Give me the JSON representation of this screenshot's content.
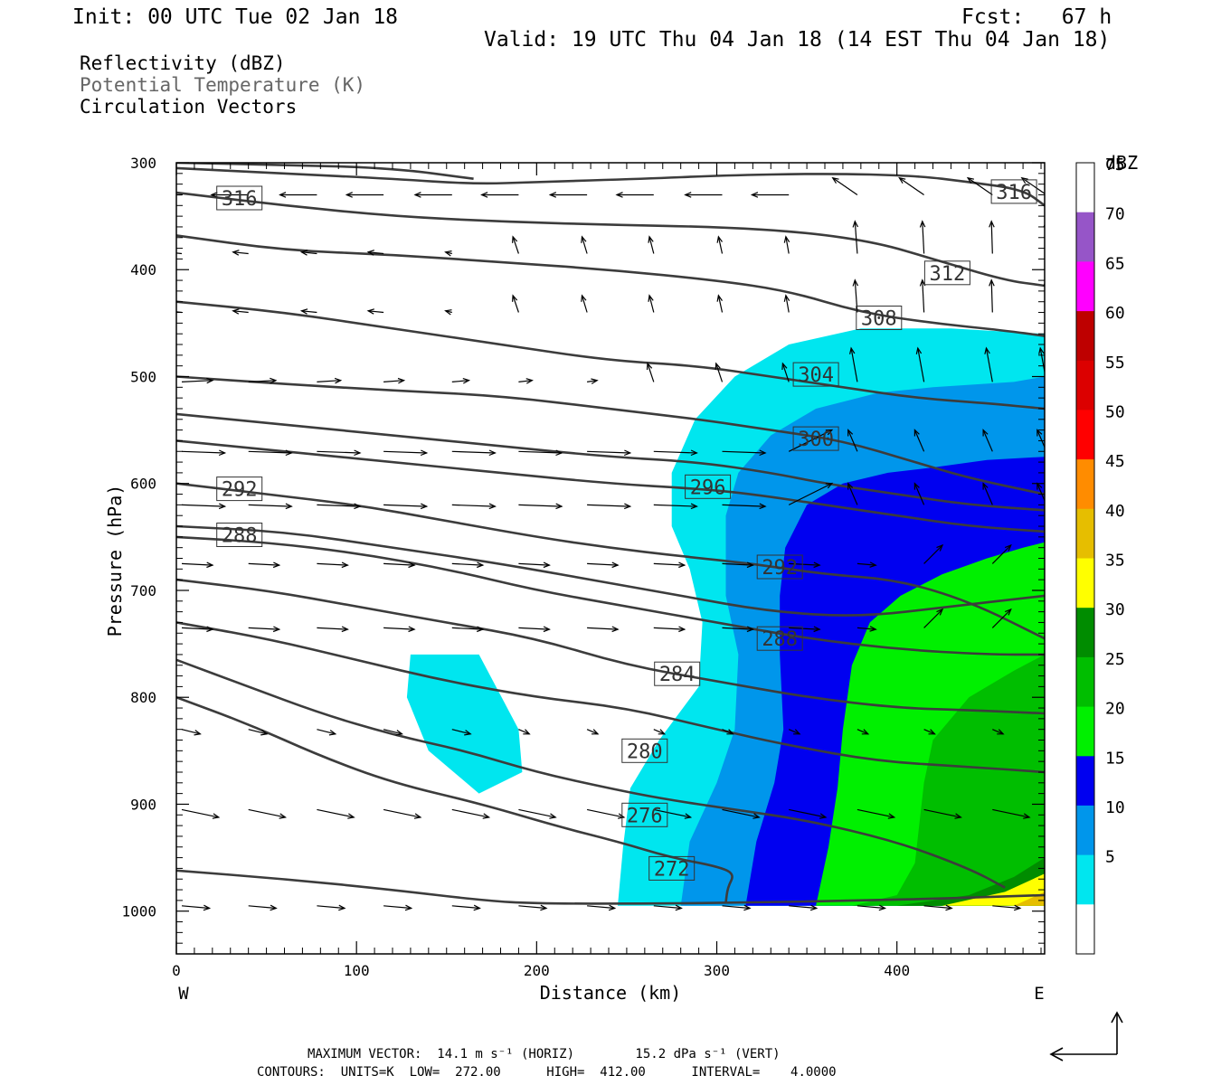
{
  "header": {
    "init": "Init: 00 UTC Tue 02 Jan 18",
    "fcst": "Fcst:   67 h",
    "valid": "Valid: 19 UTC Thu 04 Jan 18 (14 EST Thu 04 Jan 18)"
  },
  "legend": {
    "line1": "Reflectivity (dBZ)",
    "line2": "Potential Temperature (K)",
    "line3": "Circulation Vectors"
  },
  "footer": {
    "line1": "MAXIMUM VECTOR:  14.1 m s⁻¹ (HORIZ)        15.2 dPa s⁻¹ (VERT)",
    "line2": "CONTOURS:  UNITS=K  LOW=  272.00      HIGH=  412.00      INTERVAL=    4.0000"
  },
  "colors": {
    "contour": "#3c3c3c",
    "scale": [
      "#ffffff",
      "#00e6ef",
      "#0096eb",
      "#0000f0",
      "#00f000",
      "#00be00",
      "#008c00",
      "#ffff00",
      "#e6be00",
      "#ff8c00",
      "#ff0000",
      "#dc0000",
      "#be0000",
      "#ff00ff",
      "#9655c8"
    ]
  },
  "chart_data": {
    "type": "cross-section",
    "xlabel": "Distance (km)",
    "ylabel": "Pressure (hPa)",
    "xlim": [
      0,
      482
    ],
    "ylim": [
      1040,
      300
    ],
    "x_ticks": [
      0,
      100,
      200,
      300,
      400
    ],
    "y_ticks": [
      300,
      400,
      500,
      600,
      700,
      800,
      900,
      1000
    ],
    "x_ends": [
      "W",
      "E"
    ],
    "colorbar": {
      "title": "dBZ",
      "levels": [
        5,
        10,
        15,
        20,
        25,
        30,
        35,
        40,
        45,
        50,
        55,
        60,
        65,
        70,
        75
      ]
    },
    "reflectivity": [
      {
        "dbz": 5,
        "polygon": [
          [
            245,
            995
          ],
          [
            248,
            940
          ],
          [
            252,
            885
          ],
          [
            268,
            840
          ],
          [
            290,
            790
          ],
          [
            292,
            730
          ],
          [
            285,
            680
          ],
          [
            275,
            640
          ],
          [
            275,
            590
          ],
          [
            288,
            540
          ],
          [
            310,
            500
          ],
          [
            340,
            470
          ],
          [
            380,
            455
          ],
          [
            430,
            455
          ],
          [
            482,
            460
          ],
          [
            482,
            995
          ]
        ]
      },
      {
        "dbz": 5,
        "polygon": [
          [
            130,
            760
          ],
          [
            168,
            760
          ],
          [
            190,
            830
          ],
          [
            192,
            870
          ],
          [
            168,
            890
          ],
          [
            140,
            850
          ],
          [
            128,
            800
          ]
        ]
      },
      {
        "dbz": 10,
        "polygon": [
          [
            280,
            995
          ],
          [
            285,
            935
          ],
          [
            300,
            880
          ],
          [
            310,
            830
          ],
          [
            312,
            760
          ],
          [
            305,
            705
          ],
          [
            305,
            630
          ],
          [
            312,
            590
          ],
          [
            330,
            555
          ],
          [
            355,
            530
          ],
          [
            390,
            515
          ],
          [
            420,
            510
          ],
          [
            465,
            505
          ],
          [
            482,
            500
          ],
          [
            482,
            995
          ]
        ]
      },
      {
        "dbz": 15,
        "polygon": [
          [
            316,
            995
          ],
          [
            322,
            935
          ],
          [
            332,
            880
          ],
          [
            337,
            830
          ],
          [
            335,
            760
          ],
          [
            335,
            705
          ],
          [
            338,
            660
          ],
          [
            350,
            620
          ],
          [
            370,
            600
          ],
          [
            395,
            590
          ],
          [
            420,
            585
          ],
          [
            450,
            578
          ],
          [
            482,
            575
          ],
          [
            482,
            995
          ]
        ]
      },
      {
        "dbz": 20,
        "polygon": [
          [
            355,
            995
          ],
          [
            362,
            940
          ],
          [
            367,
            885
          ],
          [
            370,
            830
          ],
          [
            375,
            770
          ],
          [
            385,
            730
          ],
          [
            402,
            705
          ],
          [
            425,
            685
          ],
          [
            450,
            670
          ],
          [
            470,
            660
          ],
          [
            482,
            655
          ],
          [
            482,
            995
          ]
        ]
      },
      {
        "dbz": 25,
        "polygon": [
          [
            375,
            995
          ],
          [
            400,
            985
          ],
          [
            410,
            955
          ],
          [
            415,
            880
          ],
          [
            420,
            840
          ],
          [
            440,
            800
          ],
          [
            465,
            775
          ],
          [
            482,
            760
          ],
          [
            482,
            995
          ]
        ]
      },
      {
        "dbz": 30,
        "polygon": [
          [
            400,
            995
          ],
          [
            440,
            985
          ],
          [
            465,
            968
          ],
          [
            482,
            950
          ],
          [
            482,
            995
          ]
        ]
      },
      {
        "dbz": 35,
        "polygon": [
          [
            425,
            995
          ],
          [
            460,
            982
          ],
          [
            482,
            965
          ],
          [
            482,
            995
          ]
        ]
      },
      {
        "dbz": 40,
        "polygon": [
          [
            465,
            995
          ],
          [
            482,
            982
          ],
          [
            482,
            995
          ]
        ]
      }
    ],
    "theta_contours": [
      {
        "k": 272,
        "label_at": [
          275,
          960
        ],
        "points": [
          [
            0,
            962
          ],
          [
            60,
            970
          ],
          [
            120,
            980
          ],
          [
            170,
            990
          ],
          [
            200,
            993
          ],
          [
            260,
            993
          ],
          [
            320,
            992
          ],
          [
            380,
            990
          ],
          [
            430,
            988
          ],
          [
            482,
            985
          ]
        ]
      },
      {
        "k": 276,
        "points": [
          [
            0,
            800
          ],
          [
            40,
            825
          ],
          [
            80,
            855
          ],
          [
            120,
            880
          ],
          [
            170,
            900
          ],
          [
            210,
            920
          ],
          [
            245,
            935
          ],
          [
            275,
            950
          ],
          [
            300,
            958
          ],
          [
            310,
            965
          ],
          [
            306,
            978
          ],
          [
            305,
            992
          ]
        ]
      },
      {
        "k": 276,
        "label_at": [
          260,
          910
        ],
        "points": [
          [
            0,
            765
          ],
          [
            40,
            790
          ],
          [
            80,
            815
          ],
          [
            120,
            835
          ],
          [
            160,
            850
          ],
          [
            200,
            870
          ],
          [
            240,
            885
          ],
          [
            270,
            895
          ],
          [
            310,
            905
          ],
          [
            350,
            915
          ],
          [
            400,
            935
          ],
          [
            440,
            960
          ],
          [
            460,
            978
          ]
        ]
      },
      {
        "k": 280,
        "label_at": [
          260,
          850
        ],
        "points": [
          [
            0,
            730
          ],
          [
            50,
            745
          ],
          [
            100,
            765
          ],
          [
            150,
            785
          ],
          [
            200,
            800
          ],
          [
            250,
            810
          ],
          [
            300,
            830
          ],
          [
            340,
            845
          ],
          [
            390,
            860
          ],
          [
            440,
            865
          ],
          [
            482,
            870
          ]
        ]
      },
      {
        "k": 284,
        "label_at": [
          278,
          778
        ],
        "points": [
          [
            0,
            690
          ],
          [
            50,
            700
          ],
          [
            100,
            715
          ],
          [
            150,
            730
          ],
          [
            200,
            745
          ],
          [
            250,
            770
          ],
          [
            300,
            785
          ],
          [
            350,
            800
          ],
          [
            400,
            810
          ],
          [
            440,
            812
          ],
          [
            482,
            815
          ]
        ]
      },
      {
        "k": 288,
        "label_at": [
          335,
          745
        ],
        "points": [
          [
            0,
            650
          ],
          [
            50,
            655
          ],
          [
            100,
            665
          ],
          [
            150,
            680
          ],
          [
            200,
            700
          ],
          [
            250,
            715
          ],
          [
            300,
            730
          ],
          [
            350,
            745
          ],
          [
            400,
            755
          ],
          [
            450,
            760
          ],
          [
            482,
            760
          ]
        ]
      },
      {
        "k": 288,
        "label_at": [
          35,
          648
        ],
        "points": [
          [
            0,
            640
          ],
          [
            60,
            645
          ],
          [
            120,
            660
          ],
          [
            180,
            675
          ],
          [
            230,
            690
          ],
          [
            280,
            705
          ],
          [
            330,
            720
          ],
          [
            380,
            725
          ],
          [
            430,
            715
          ],
          [
            482,
            705
          ]
        ]
      },
      {
        "k": 292,
        "label_at": [
          335,
          678
        ],
        "points": [
          [
            0,
            600
          ],
          [
            50,
            610
          ],
          [
            100,
            620
          ],
          [
            150,
            635
          ],
          [
            200,
            650
          ],
          [
            240,
            660
          ],
          [
            280,
            668
          ],
          [
            320,
            675
          ],
          [
            360,
            685
          ],
          [
            400,
            690
          ],
          [
            440,
            710
          ],
          [
            482,
            745
          ]
        ]
      },
      {
        "k": 292,
        "label_at": [
          35,
          605
        ],
        "points": [
          [
            0,
            560
          ],
          [
            60,
            570
          ],
          [
            120,
            580
          ],
          [
            180,
            590
          ],
          [
            240,
            600
          ],
          [
            290,
            605
          ],
          [
            320,
            610
          ],
          [
            360,
            620
          ],
          [
            400,
            630
          ],
          [
            440,
            640
          ],
          [
            482,
            645
          ]
        ]
      },
      {
        "k": 296,
        "label_at": [
          295,
          603
        ],
        "points": [
          [
            0,
            535
          ],
          [
            60,
            545
          ],
          [
            120,
            555
          ],
          [
            180,
            565
          ],
          [
            240,
            575
          ],
          [
            290,
            580
          ],
          [
            330,
            590
          ],
          [
            360,
            600
          ],
          [
            400,
            610
          ],
          [
            440,
            620
          ],
          [
            482,
            625
          ]
        ]
      },
      {
        "k": 300,
        "label_at": [
          355,
          558
        ],
        "points": [
          [
            0,
            500
          ],
          [
            60,
            507
          ],
          [
            120,
            513
          ],
          [
            180,
            518
          ],
          [
            240,
            530
          ],
          [
            290,
            540
          ],
          [
            330,
            550
          ],
          [
            370,
            560
          ],
          [
            410,
            580
          ],
          [
            440,
            595
          ],
          [
            482,
            610
          ]
        ]
      },
      {
        "k": 304,
        "label_at": [
          355,
          498
        ],
        "points": [
          [
            0,
            430
          ],
          [
            60,
            440
          ],
          [
            120,
            455
          ],
          [
            180,
            470
          ],
          [
            240,
            485
          ],
          [
            290,
            490
          ],
          [
            330,
            500
          ],
          [
            370,
            510
          ],
          [
            410,
            520
          ],
          [
            450,
            525
          ],
          [
            482,
            530
          ]
        ]
      },
      {
        "k": 308,
        "label_at": [
          390,
          445
        ],
        "points": [
          [
            0,
            368
          ],
          [
            60,
            382
          ],
          [
            120,
            386
          ],
          [
            180,
            393
          ],
          [
            240,
            400
          ],
          [
            300,
            410
          ],
          [
            340,
            420
          ],
          [
            380,
            440
          ],
          [
            420,
            450
          ],
          [
            460,
            457
          ],
          [
            482,
            462
          ]
        ]
      },
      {
        "k": 312,
        "label_at": [
          428,
          403
        ],
        "points": [
          [
            0,
            328
          ],
          [
            60,
            340
          ],
          [
            120,
            350
          ],
          [
            180,
            355
          ],
          [
            240,
            358
          ],
          [
            300,
            360
          ],
          [
            350,
            365
          ],
          [
            390,
            375
          ],
          [
            420,
            390
          ],
          [
            460,
            410
          ],
          [
            482,
            415
          ]
        ]
      },
      {
        "k": 316,
        "label_at": [
          465,
          327
        ],
        "points": [
          [
            0,
            305
          ],
          [
            60,
            310
          ],
          [
            120,
            315
          ],
          [
            165,
            320
          ],
          [
            200,
            318
          ],
          [
            260,
            315
          ],
          [
            300,
            312
          ],
          [
            360,
            310
          ],
          [
            410,
            312
          ],
          [
            440,
            318
          ],
          [
            470,
            325
          ],
          [
            482,
            340
          ]
        ]
      },
      {
        "k": 316,
        "label_at": [
          35,
          333
        ],
        "points": [
          [
            0,
            300
          ],
          [
            60,
            302
          ],
          [
            120,
            305
          ],
          [
            165,
            315
          ]
        ]
      }
    ]
  }
}
